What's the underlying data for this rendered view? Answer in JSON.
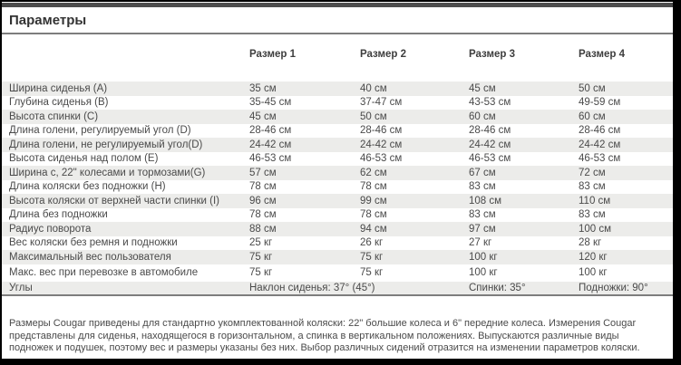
{
  "page": {
    "title": "Параметры"
  },
  "table": {
    "headers": [
      "Размер 1",
      "Размер 2",
      "Размер 3",
      "Размер 4"
    ],
    "rows": [
      {
        "label": "Ширина сиденья (A)",
        "values": [
          "35 см",
          "40 см",
          "45 см",
          "50 см"
        ]
      },
      {
        "label": "Глубина сиденья (B)",
        "values": [
          "35-45 см",
          "37-47 см",
          "43-53 см",
          "49-59 см"
        ]
      },
      {
        "label": "Высота спинки (C)",
        "values": [
          "45 см",
          "50 см",
          "60 см",
          "60 см"
        ]
      },
      {
        "label": "Длина голени, регулируемый угол (D)",
        "values": [
          "28-46 см",
          "28-46 см",
          "28-46 см",
          "28-46 см"
        ]
      },
      {
        "label": "Длина голени, не регулируемый угол(D)",
        "values": [
          "24-42 см",
          "24-42 см",
          "24-42 см",
          "24-42 см"
        ]
      },
      {
        "label": "Высота сиденья над полом (E)",
        "values": [
          "46-53 см",
          "46-53 см",
          "46-53 см",
          "46-53 см"
        ]
      },
      {
        "label": "Ширина с, 22\" колесами и тормозами(G)",
        "values": [
          "57 см",
          "62 см",
          "67 см",
          "72 см"
        ]
      },
      {
        "label": "Длина коляски без подножки (H)",
        "values": [
          "78 см",
          "78 см",
          "83 см",
          "83 см"
        ]
      },
      {
        "label": "Высота коляски от верхней части спинки (I)",
        "values": [
          "96 см",
          "99 см",
          "108 см",
          "110 см"
        ]
      },
      {
        "label": "Длина без подножки",
        "values": [
          "78 см",
          "78 см",
          "83 см",
          "83 см"
        ]
      },
      {
        "label": "Радиус поворота",
        "values": [
          "88 см",
          "94 см",
          "97 см",
          "100 см"
        ]
      },
      {
        "label": "Вес коляски без ремня и подножки",
        "values": [
          "25 кг",
          "26 кг",
          "27 кг",
          "28 кг"
        ]
      },
      {
        "label": "Максимальный вес пользователя",
        "values": [
          "75 кг",
          "75 кг",
          "100 кг",
          "120 кг"
        ]
      },
      {
        "label": "Макс. вес при перевозке в автомобиле",
        "values": [
          "75 кг",
          "75 кг",
          "100 кг",
          "100 кг"
        ]
      }
    ],
    "angles_row": {
      "label": "Углы",
      "seat": "Наклон сиденья: 37° (45°)",
      "back": "Спинки: 35°",
      "footrest": "Подножки: 90°"
    }
  },
  "footer": {
    "note": "Размеры Cougar приведены для стандартно укомплектованной коляски: 22\" большие колеса и 6\" передние колеса. Измерения Cougar представлены для сиденья, находящегося в горизонтальном, а спинка в вертикальном положениях. Выпускаются различные виды подножек и подушек, поэтому вес и размеры указаны без них. Выбор различных сидений отразится на изменении параметров коляски."
  },
  "colors": {
    "stripe": "#ececea",
    "text": "#4a4a4a",
    "accent_bar": "#4d4d4d",
    "frame": "#000000"
  }
}
